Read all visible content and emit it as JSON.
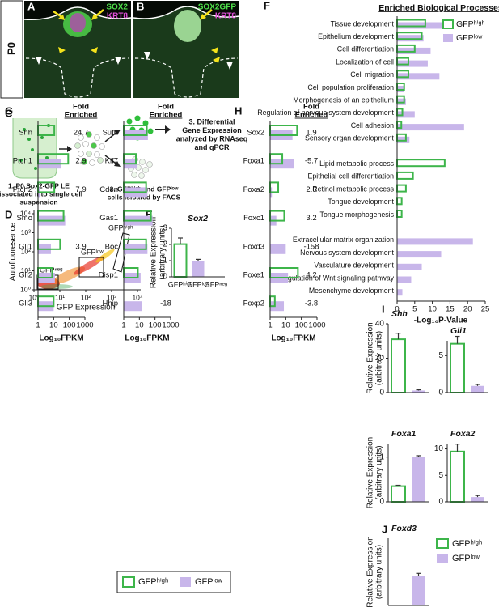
{
  "panel_labels": [
    "A",
    "B",
    "C",
    "D",
    "E",
    "F",
    "G",
    "H",
    "I",
    "J"
  ],
  "age": "P0",
  "images": [
    {
      "stains": [
        "SOX2",
        "KRT8"
      ]
    },
    {
      "stains": [
        "SOX2GFP",
        "KRT8"
      ]
    }
  ],
  "schematic": {
    "step1": [
      "1. P0 Sox2-GFP LE",
      "dissociated into single cell",
      "suspension"
    ],
    "step2": [
      "2. GFPʰⁱᵍʰ and GFPˡᵒʷ",
      "cells isloated by FACS"
    ],
    "step3": [
      "3. Differential",
      "Gene Expression",
      "analyzed by RNAseq",
      "and qPCR"
    ]
  },
  "chart_data": [
    {
      "type": "scatter",
      "log": true,
      "xlim": [
        1,
        10000
      ],
      "ylim": [
        1,
        10000
      ],
      "xticks": [
        {
          "value": 1,
          "label": "10⁰"
        },
        {
          "value": 10,
          "label": "10¹"
        },
        {
          "value": 100,
          "label": "10²"
        },
        {
          "value": 1000,
          "label": "10³"
        },
        {
          "value": 10000,
          "label": "10⁴"
        }
      ],
      "yticks": [
        {
          "value": 1,
          "label": "10⁰"
        },
        {
          "value": 10,
          "label": "10¹"
        },
        {
          "value": 100,
          "label": "10²"
        },
        {
          "value": 1000,
          "label": "10³"
        },
        {
          "value": 10000,
          "label": "10⁴"
        }
      ],
      "xlabel": "GFP Expression",
      "ylabel": "Autofluoresence",
      "annotations": [
        "GFPⁿᵉᵍ",
        "GFPˡᵒʷ",
        "GFPʰⁱᵍʰ"
      ]
    },
    {
      "type": "bar",
      "title": "Sox2",
      "ylabel": [
        "Relative Expression",
        "(arbitrary units)"
      ],
      "categories": [
        "GFPʰⁱᵍʰ",
        "GFPˡᵒʷ",
        "GFPⁿᵉᵍ"
      ],
      "values": [
        2.02,
        0.98,
        0
      ],
      "errors": [
        0.38,
        0.1,
        0
      ],
      "bar_colors": [
        "#3db54a",
        "#c8b6ea",
        "#c8b6ea"
      ],
      "bar_outline": [
        true,
        false,
        false
      ],
      "ylim": [
        0,
        3
      ],
      "yticks": [
        0,
        1,
        2,
        3
      ]
    },
    {
      "type": "hbar",
      "title": "Enriched Biological Processes",
      "xlabel": "-Log₁₀P-Value",
      "legend": "upper right",
      "categories": [
        "Tissue development",
        "Epithelium development",
        "Cell differentiation",
        "Localization of cell",
        "Cell migration",
        "Cell population proliferation",
        "Morphogenesis of an epithelium",
        "Regulation of nervous system development",
        "Cell adhesion",
        "Sensory organ development",
        null,
        "Lipid metabolic process",
        "Epithelial cell differentiation",
        "Retinol metabolic process",
        "Tongue development",
        "Tongue morphogenesis",
        null,
        "Extracellular matrix organization",
        "Nervous system development",
        "Vasculature development",
        "Regulation of Wnt signaling pathway",
        "Mesenchyme development"
      ],
      "series": [
        {
          "name": "GFPʰⁱᵍʰ",
          "color": "#3db54a",
          "outline": true,
          "values": [
            8,
            7,
            5,
            3.2,
            3.2,
            2,
            2,
            1.5,
            1.2,
            2.5,
            null,
            13.5,
            4.5,
            2.5,
            1.3,
            1.3,
            null,
            null,
            null,
            null,
            null,
            null
          ]
        },
        {
          "name": "GFPˡᵒʷ",
          "color": "#c8b6ea",
          "values": [
            13.1,
            7.5,
            9.5,
            8.7,
            12,
            2,
            2.5,
            5,
            19,
            3.5,
            null,
            null,
            null,
            null,
            null,
            null,
            null,
            21.5,
            12.5,
            7,
            4,
            1.5
          ]
        }
      ],
      "xlim": [
        0,
        25
      ],
      "xticks": [
        0,
        5,
        10,
        15,
        20,
        25
      ]
    },
    {
      "type": "hbar",
      "log": true,
      "xlabel": "Log₁₀FPKM",
      "fold_title": [
        "Fold",
        "Enriched"
      ],
      "categories": [
        "Shh",
        "Ptch1",
        "Ptch2",
        "Smo",
        "Gli1",
        "Gli2",
        "Gli3"
      ],
      "series": [
        {
          "name": "GFPʰⁱᵍʰ",
          "color": "#3db54a",
          "outline": true,
          "values": [
            11,
            85,
            11,
            43,
            26,
            8,
            10
          ]
        },
        {
          "name": "GFPˡᵒʷ",
          "color": "#c8b6ea",
          "values": [
            0.45,
            30,
            1.4,
            55,
            6.7,
            12,
            10
          ]
        }
      ],
      "fold_enriched": [
        24.7,
        2.9,
        7.9,
        null,
        3.9,
        null,
        null
      ],
      "xlim": [
        1,
        1000
      ],
      "xticks": [
        1,
        10,
        100,
        1000
      ]
    },
    {
      "type": "hbar",
      "log": true,
      "xlabel": "Log₁₀FPKM",
      "fold_title": [
        "Fold",
        "Enriched"
      ],
      "categories": [
        "Sufu",
        "Kif7",
        "Cdon",
        "Gas1",
        "Boc",
        "Disp1",
        "Hhip"
      ],
      "series": [
        {
          "color": "#3db54a",
          "outline": true,
          "values": [
            30,
            6,
            27,
            55,
            27,
            8,
            0.8
          ]
        },
        {
          "color": "#c8b6ea",
          "values": [
            35,
            7,
            33,
            70,
            33,
            12,
            15
          ]
        }
      ],
      "fold_enriched": [
        null,
        null,
        null,
        null,
        null,
        null,
        -18
      ],
      "xlim": [
        1,
        1000
      ],
      "xticks": [
        1,
        10,
        100,
        1000
      ]
    },
    {
      "type": "hbar",
      "log": true,
      "xlabel": "Log₁₀FPKM",
      "fold_title": [
        "Fold",
        "Enriched"
      ],
      "categories": [
        "Sox2",
        "Foxa1",
        "Foxa2",
        "Foxc1",
        "Foxd3",
        "Foxe1",
        "Foxp2"
      ],
      "series": [
        {
          "color": "#3db54a",
          "outline": true,
          "values": [
            53,
            6,
            3.3,
            8,
            0.063,
            60,
            2
          ]
        },
        {
          "color": "#c8b6ea",
          "values": [
            27,
            34,
            1.3,
            2.5,
            10,
            14,
            7.6
          ]
        }
      ],
      "fold_enriched": [
        1.9,
        -5.7,
        2.6,
        3.2,
        -158,
        4.2,
        -3.8
      ],
      "xlim": [
        1,
        1000
      ],
      "xticks": [
        1,
        10,
        100,
        1000
      ]
    },
    {
      "type": "bar",
      "title": "Shh",
      "ylabel": [
        "Relative Expression",
        "(arbitrary units)"
      ],
      "ylim": [
        0,
        40
      ],
      "yticks": [
        0,
        20,
        40
      ],
      "series": [
        {
          "color": "#3db54a",
          "outline": true,
          "values": [
            31
          ],
          "errors": [
            3.5
          ]
        },
        {
          "color": "#c8b6ea",
          "values": [
            1.2
          ],
          "errors": [
            0.4
          ]
        }
      ]
    },
    {
      "type": "bar",
      "title": "Gli1",
      "ylim": [
        0,
        7
      ],
      "yticks": [
        0,
        5
      ],
      "series": [
        {
          "color": "#3db54a",
          "outline": true,
          "values": [
            6.6
          ],
          "errors": [
            1.0
          ]
        },
        {
          "color": "#c8b6ea",
          "values": [
            0.9
          ],
          "errors": [
            0.2
          ]
        }
      ]
    },
    {
      "type": "bar",
      "title": "Foxa1",
      "ylabel": [
        "Relative Expression",
        "(arbitrary units)"
      ],
      "ylim": [
        0,
        1.3
      ],
      "yticks": [
        0,
        1
      ],
      "series": [
        {
          "color": "#3db54a",
          "outline": true,
          "values": [
            0.35
          ],
          "errors": [
            0.02
          ]
        },
        {
          "color": "#c8b6ea",
          "values": [
            1.0
          ],
          "errors": [
            0.03
          ]
        }
      ]
    },
    {
      "type": "bar",
      "title": "Foxa2",
      "ylim": [
        0,
        11
      ],
      "yticks": [
        0,
        5,
        10
      ],
      "series": [
        {
          "color": "#3db54a",
          "outline": true,
          "values": [
            9.5
          ],
          "errors": [
            1.4
          ]
        },
        {
          "color": "#c8b6ea",
          "values": [
            0.9
          ],
          "errors": [
            0.3
          ]
        }
      ]
    },
    {
      "type": "bar",
      "title": "Foxd3",
      "ylabel": [
        "Relative Expression",
        "(arbitrary units)"
      ],
      "ylim": [
        0,
        2.3
      ],
      "yticks": [],
      "legend": "right",
      "series": [
        {
          "name": "GFPʰⁱᵍʰ",
          "color": "#3db54a",
          "outline": true,
          "values": [
            null
          ],
          "errors": [
            null
          ]
        },
        {
          "name": "GFPˡᵒʷ",
          "color": "#c8b6ea",
          "values": [
            1.0
          ],
          "errors": [
            0.1
          ]
        }
      ]
    }
  ]
}
